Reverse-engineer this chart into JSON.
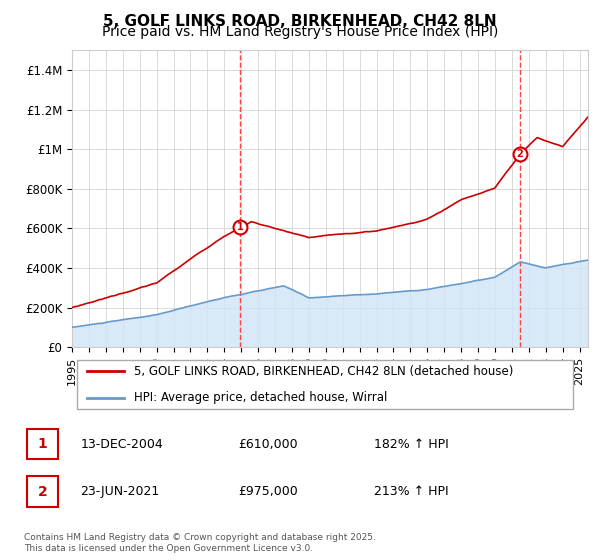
{
  "title": "5, GOLF LINKS ROAD, BIRKENHEAD, CH42 8LN",
  "subtitle": "Price paid vs. HM Land Registry's House Price Index (HPI)",
  "ylim": [
    0,
    1500000
  ],
  "xlim_start": 1995.0,
  "xlim_end": 2025.5,
  "yticks": [
    0,
    200000,
    400000,
    600000,
    800000,
    1000000,
    1200000,
    1400000
  ],
  "ytick_labels": [
    "£0",
    "£200K",
    "£400K",
    "£600K",
    "£800K",
    "£1M",
    "£1.2M",
    "£1.4M"
  ],
  "xtick_years": [
    1995,
    1996,
    1997,
    1998,
    1999,
    2000,
    2001,
    2002,
    2003,
    2004,
    2005,
    2006,
    2007,
    2008,
    2009,
    2010,
    2011,
    2012,
    2013,
    2014,
    2015,
    2016,
    2017,
    2018,
    2019,
    2020,
    2021,
    2022,
    2023,
    2024,
    2025
  ],
  "sale1_x": 2004.95,
  "sale1_y": 610000,
  "sale1_label": "1",
  "sale2_x": 2021.47,
  "sale2_y": 975000,
  "sale2_label": "2",
  "red_line_color": "#cc0000",
  "blue_line_color": "#6699cc",
  "blue_fill_color": "#d0e4f7",
  "dashed_line_color": "#ff4444",
  "grid_color": "#cccccc",
  "bg_color": "#ffffff",
  "legend_label_red": "5, GOLF LINKS ROAD, BIRKENHEAD, CH42 8LN (detached house)",
  "legend_label_blue": "HPI: Average price, detached house, Wirral",
  "table_row1": [
    "1",
    "13-DEC-2004",
    "£610,000",
    "182% ↑ HPI"
  ],
  "table_row2": [
    "2",
    "23-JUN-2021",
    "£975,000",
    "213% ↑ HPI"
  ],
  "footnote": "Contains HM Land Registry data © Crown copyright and database right 2025.\nThis data is licensed under the Open Government Licence v3.0.",
  "title_fontsize": 11,
  "subtitle_fontsize": 10,
  "tick_fontsize": 8.5,
  "legend_fontsize": 8.5,
  "table_fontsize": 9
}
